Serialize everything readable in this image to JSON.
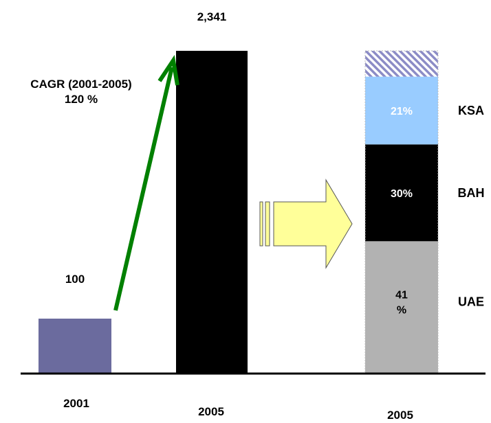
{
  "chart_data": {
    "type": "bar",
    "categories": [
      "2001",
      "2005",
      "2005"
    ],
    "bars": [
      {
        "category": "2001",
        "value": 100,
        "value_label": "100"
      },
      {
        "category": "2005",
        "value": 2341,
        "value_label": "2,341"
      }
    ],
    "stacked_bar": {
      "category": "2005",
      "segments": [
        {
          "name": "UAE",
          "share": 41,
          "label": "41\n%"
        },
        {
          "name": "BAH",
          "share": 30,
          "label": "30%"
        },
        {
          "name": "KSA",
          "share": 21,
          "label": "21%"
        },
        {
          "name": "",
          "share": 8,
          "label": ""
        }
      ]
    },
    "annotation": {
      "text_line1": "CAGR (2001-2005)",
      "text_line2": "120 %"
    },
    "colors": {
      "bar_2001": "#6b6b9e",
      "bar_2005": "#000000",
      "uae": "#b2b2b2",
      "bah": "#000000",
      "ksa": "#99ccff",
      "other_stripe": "#8c8cc6",
      "growth_arrow": "#008000",
      "block_arrow_fill": "#ffff99"
    }
  }
}
